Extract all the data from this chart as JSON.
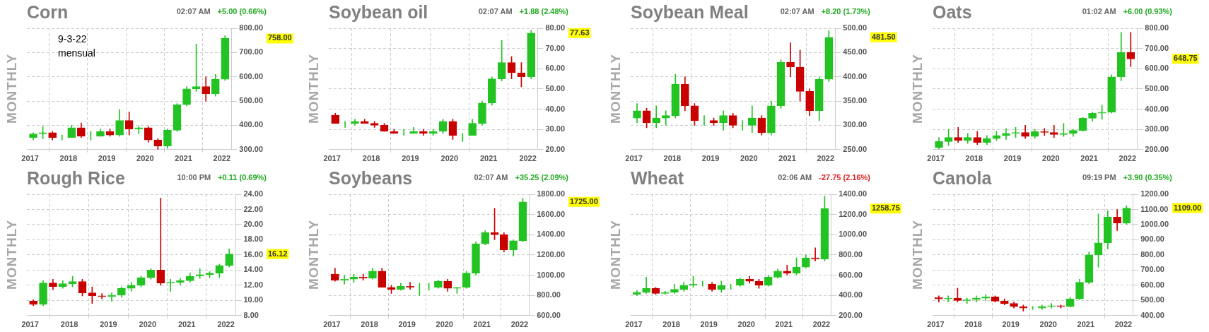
{
  "chart_data": [
    {
      "type": "candlestick",
      "title": "Corn",
      "subtitle": "02:07 AM",
      "ylabel": "MONTHLY",
      "annotations": [
        "+5.00 (0.66%)",
        "9-3-22 mensual",
        "758.00"
      ],
      "x": [
        "2017-02",
        "2017-05",
        "2017-08",
        "2017-11",
        "2018-02",
        "2018-05",
        "2018-08",
        "2018-11",
        "2019-02",
        "2019-05",
        "2019-08",
        "2019-11",
        "2020-02",
        "2020-05",
        "2020-08",
        "2020-11",
        "2021-02",
        "2021-05",
        "2021-08",
        "2021-11",
        "2022-02"
      ],
      "ohlc": [
        [
          350,
          370,
          340,
          365
        ],
        [
          365,
          395,
          345,
          370
        ],
        [
          370,
          375,
          340,
          350
        ],
        [
          350,
          360,
          340,
          350
        ],
        [
          350,
          400,
          350,
          390
        ],
        [
          390,
          410,
          350,
          355
        ],
        [
          355,
          375,
          340,
          355
        ],
        [
          355,
          385,
          355,
          375
        ],
        [
          375,
          385,
          355,
          360
        ],
        [
          360,
          465,
          355,
          420
        ],
        [
          420,
          455,
          360,
          385
        ],
        [
          385,
          395,
          365,
          390
        ],
        [
          390,
          395,
          330,
          340
        ],
        [
          340,
          345,
          300,
          315
        ],
        [
          315,
          385,
          305,
          380
        ],
        [
          380,
          490,
          375,
          485
        ],
        [
          485,
          560,
          480,
          550
        ],
        [
          550,
          735,
          540,
          560
        ],
        [
          560,
          600,
          500,
          530
        ],
        [
          530,
          610,
          520,
          590
        ],
        [
          590,
          770,
          585,
          758
        ]
      ],
      "xlim": [
        "2016-12",
        "2022-04"
      ],
      "xticks": [
        "2017",
        "2018",
        "2019",
        "2020",
        "2021",
        "2022"
      ],
      "ylim": [
        300,
        800
      ],
      "yticks": [
        {
          "value": 300,
          "label": "300.00"
        },
        {
          "value": 400,
          "label": "400.00"
        },
        {
          "value": 500,
          "label": "500.00"
        },
        {
          "value": 600,
          "label": "600.00"
        },
        {
          "value": 700,
          "label": "700.00"
        },
        {
          "value": 800,
          "label": "800.00"
        }
      ],
      "grid": true,
      "legend": false
    },
    {
      "type": "candlestick",
      "title": "Soybean oil",
      "subtitle": "02:07 AM",
      "ylabel": "MONTHLY",
      "annotations": [
        "+1.88 (2.48%)",
        "77.63"
      ],
      "x": [
        "2017-02",
        "2017-05",
        "2017-08",
        "2017-11",
        "2018-02",
        "2018-05",
        "2018-08",
        "2018-11",
        "2019-02",
        "2019-05",
        "2019-08",
        "2019-11",
        "2020-02",
        "2020-05",
        "2020-08",
        "2020-11",
        "2021-02",
        "2021-05",
        "2021-08",
        "2021-11",
        "2022-02"
      ],
      "ohlc": [
        [
          37,
          38,
          33,
          33
        ],
        [
          33,
          34,
          31,
          33
        ],
        [
          33,
          35,
          32,
          34
        ],
        [
          34,
          35,
          33,
          33
        ],
        [
          33,
          34,
          31,
          32
        ],
        [
          32,
          33,
          29,
          29
        ],
        [
          29,
          30,
          28,
          28
        ],
        [
          28,
          30,
          27,
          28
        ],
        [
          28,
          31,
          28,
          29
        ],
        [
          29,
          30,
          27,
          28
        ],
        [
          28,
          30,
          27,
          29
        ],
        [
          29,
          35,
          28,
          34
        ],
        [
          34,
          35,
          25,
          27
        ],
        [
          27,
          28,
          24,
          27
        ],
        [
          27,
          35,
          27,
          33
        ],
        [
          33,
          44,
          32,
          43
        ],
        [
          43,
          56,
          42,
          55
        ],
        [
          55,
          74,
          54,
          63
        ],
        [
          63,
          66,
          55,
          58
        ],
        [
          58,
          63,
          51,
          56
        ],
        [
          56,
          79,
          55,
          77.63
        ]
      ],
      "xlim": [
        "2016-12",
        "2022-04"
      ],
      "xticks": [
        "2017",
        "2018",
        "2019",
        "2020",
        "2021",
        "2022"
      ],
      "ylim": [
        20,
        80
      ],
      "yticks": [
        {
          "value": 20,
          "label": "20.00"
        },
        {
          "value": 30,
          "label": "30.00"
        },
        {
          "value": 40,
          "label": "40.00"
        },
        {
          "value": 50,
          "label": "50.00"
        },
        {
          "value": 60,
          "label": "60.00"
        },
        {
          "value": 70,
          "label": "70.00"
        },
        {
          "value": 80,
          "label": "80.00"
        }
      ],
      "grid": true,
      "legend": false
    },
    {
      "type": "candlestick",
      "title": "Soybean Meal",
      "subtitle": "02:07 AM",
      "ylabel": "MONTHLY",
      "annotations": [
        "+8.20 (1.73%)",
        "481.50"
      ],
      "x": [
        "2017-02",
        "2017-05",
        "2017-08",
        "2017-11",
        "2018-02",
        "2018-05",
        "2018-08",
        "2018-11",
        "2019-02",
        "2019-05",
        "2019-08",
        "2019-11",
        "2020-02",
        "2020-05",
        "2020-08",
        "2020-11",
        "2021-02",
        "2021-05",
        "2021-08",
        "2021-11",
        "2022-02"
      ],
      "ohlc": [
        [
          315,
          345,
          305,
          330
        ],
        [
          330,
          335,
          295,
          305
        ],
        [
          305,
          340,
          295,
          315
        ],
        [
          315,
          330,
          300,
          320
        ],
        [
          320,
          405,
          315,
          385
        ],
        [
          385,
          400,
          330,
          340
        ],
        [
          340,
          345,
          300,
          310
        ],
        [
          310,
          320,
          300,
          310
        ],
        [
          310,
          315,
          300,
          305
        ],
        [
          305,
          330,
          290,
          320
        ],
        [
          320,
          325,
          295,
          300
        ],
        [
          300,
          310,
          290,
          300
        ],
        [
          300,
          340,
          285,
          315
        ],
        [
          315,
          320,
          280,
          285
        ],
        [
          285,
          350,
          280,
          340
        ],
        [
          340,
          435,
          335,
          430
        ],
        [
          430,
          470,
          400,
          420
        ],
        [
          420,
          455,
          350,
          370
        ],
        [
          370,
          375,
          320,
          330
        ],
        [
          330,
          400,
          310,
          395
        ],
        [
          395,
          495,
          390,
          481.5
        ]
      ],
      "xlim": [
        "2016-12",
        "2022-04"
      ],
      "xticks": [
        "2017",
        "2018",
        "2019",
        "2020",
        "2021",
        "2022"
      ],
      "ylim": [
        250,
        500
      ],
      "yticks": [
        {
          "value": 250,
          "label": "250.00"
        },
        {
          "value": 300,
          "label": "300.00"
        },
        {
          "value": 350,
          "label": "350.00"
        },
        {
          "value": 400,
          "label": "400.00"
        },
        {
          "value": 450,
          "label": "450.00"
        },
        {
          "value": 500,
          "label": "500.00"
        }
      ],
      "grid": true,
      "legend": false
    },
    {
      "type": "candlestick",
      "title": "Oats",
      "subtitle": "01:02 AM",
      "ylabel": "MONTHLY",
      "annotations": [
        "+6.00 (0.93%)",
        "648.75"
      ],
      "x": [
        "2017-02",
        "2017-05",
        "2017-08",
        "2017-11",
        "2018-02",
        "2018-05",
        "2018-08",
        "2018-11",
        "2019-02",
        "2019-05",
        "2019-08",
        "2019-11",
        "2020-02",
        "2020-05",
        "2020-08",
        "2020-11",
        "2021-02",
        "2021-05",
        "2021-08",
        "2021-11",
        "2022-02"
      ],
      "ohlc": [
        [
          210,
          260,
          203,
          240
        ],
        [
          240,
          300,
          220,
          260
        ],
        [
          260,
          310,
          235,
          245
        ],
        [
          245,
          280,
          230,
          260
        ],
        [
          260,
          290,
          225,
          235
        ],
        [
          235,
          270,
          225,
          255
        ],
        [
          255,
          290,
          245,
          270
        ],
        [
          270,
          305,
          250,
          280
        ],
        [
          280,
          310,
          260,
          285
        ],
        [
          285,
          320,
          255,
          265
        ],
        [
          265,
          300,
          255,
          290
        ],
        [
          290,
          305,
          270,
          285
        ],
        [
          285,
          320,
          260,
          275
        ],
        [
          275,
          330,
          265,
          280
        ],
        [
          280,
          300,
          265,
          295
        ],
        [
          295,
          360,
          290,
          355
        ],
        [
          355,
          385,
          340,
          380
        ],
        [
          380,
          420,
          350,
          385
        ],
        [
          385,
          570,
          380,
          560
        ],
        [
          560,
          780,
          540,
          680
        ],
        [
          680,
          780,
          610,
          648.75
        ]
      ],
      "xlim": [
        "2016-12",
        "2022-04"
      ],
      "xticks": [
        "2017",
        "2018",
        "2019",
        "2020",
        "2021",
        "2022"
      ],
      "ylim": [
        200,
        800
      ],
      "yticks": [
        {
          "value": 200,
          "label": "200.00"
        },
        {
          "value": 300,
          "label": "300.00"
        },
        {
          "value": 400,
          "label": "400.00"
        },
        {
          "value": 500,
          "label": "500.00"
        },
        {
          "value": 600,
          "label": "600.00"
        },
        {
          "value": 700,
          "label": "700.00"
        },
        {
          "value": 800,
          "label": "800.00"
        }
      ],
      "grid": true,
      "legend": false
    },
    {
      "type": "candlestick",
      "title": "Rough Rice",
      "subtitle": "10:00 PM",
      "ylabel": "MONTHLY",
      "annotations": [
        "+0.11 (0.69%)",
        "16.12"
      ],
      "x": [
        "2017-02",
        "2017-05",
        "2017-08",
        "2017-11",
        "2018-02",
        "2018-05",
        "2018-08",
        "2018-11",
        "2019-02",
        "2019-05",
        "2019-08",
        "2019-11",
        "2020-02",
        "2020-05",
        "2020-08",
        "2020-11",
        "2021-02",
        "2021-05",
        "2021-08",
        "2021-11",
        "2022-02"
      ],
      "ohlc": [
        [
          9.9,
          10.1,
          9.3,
          9.5
        ],
        [
          9.5,
          12.6,
          9.3,
          12.3
        ],
        [
          12.3,
          12.8,
          11.4,
          11.8
        ],
        [
          11.8,
          12.6,
          11.6,
          12.2
        ],
        [
          12.2,
          13.2,
          11.8,
          12.5
        ],
        [
          12.5,
          12.8,
          10.6,
          11
        ],
        [
          11,
          11.8,
          9.6,
          10.6
        ],
        [
          10.6,
          10.9,
          10.2,
          10.5
        ],
        [
          10.5,
          11,
          9.9,
          10.7
        ],
        [
          10.7,
          11.8,
          10.4,
          11.6
        ],
        [
          11.6,
          12.4,
          11.2,
          12
        ],
        [
          12,
          13.2,
          11.8,
          13
        ],
        [
          13,
          14.2,
          12.8,
          14
        ],
        [
          14,
          23.5,
          12,
          12.3
        ],
        [
          12.3,
          12.8,
          11.2,
          12.4
        ],
        [
          12.4,
          12.9,
          12,
          12.6
        ],
        [
          12.6,
          13.6,
          12.4,
          13.2
        ],
        [
          13.2,
          14.2,
          12.9,
          13.4
        ],
        [
          13.4,
          13.8,
          13,
          13.6
        ],
        [
          13.6,
          14.8,
          13,
          14.6
        ],
        [
          14.6,
          16.8,
          14.4,
          16.12
        ]
      ],
      "xlim": [
        "2016-12",
        "2022-04"
      ],
      "xticks": [
        "2017",
        "2018",
        "2019",
        "2020",
        "2021",
        "2022"
      ],
      "ylim": [
        8,
        24
      ],
      "yticks": [
        {
          "value": 8,
          "label": "8.00"
        },
        {
          "value": 10,
          "label": "10.00"
        },
        {
          "value": 12,
          "label": "12.00"
        },
        {
          "value": 14,
          "label": "14.00"
        },
        {
          "value": 16,
          "label": "16.00"
        },
        {
          "value": 18,
          "label": "18.00"
        },
        {
          "value": 20,
          "label": "20.00"
        },
        {
          "value": 22,
          "label": "22.00"
        },
        {
          "value": 24,
          "label": "24.00"
        }
      ],
      "grid": true,
      "legend": false
    },
    {
      "type": "candlestick",
      "title": "Soybeans",
      "subtitle": "02:07 AM",
      "ylabel": "MONTHLY",
      "annotations": [
        "+35.25 (2.09%)",
        "1725.00"
      ],
      "x": [
        "2017-02",
        "2017-05",
        "2017-08",
        "2017-11",
        "2018-02",
        "2018-05",
        "2018-08",
        "2018-11",
        "2019-02",
        "2019-05",
        "2019-08",
        "2019-11",
        "2020-02",
        "2020-05",
        "2020-08",
        "2020-11",
        "2021-02",
        "2021-05",
        "2021-08",
        "2021-11",
        "2022-02"
      ],
      "ohlc": [
        [
          1010,
          1070,
          940,
          950
        ],
        [
          950,
          1000,
          910,
          960
        ],
        [
          960,
          1010,
          930,
          980
        ],
        [
          980,
          1010,
          950,
          970
        ],
        [
          970,
          1070,
          960,
          1040
        ],
        [
          1040,
          1070,
          880,
          880
        ],
        [
          880,
          900,
          820,
          860
        ],
        [
          860,
          920,
          850,
          890
        ],
        [
          890,
          930,
          860,
          880
        ],
        [
          880,
          920,
          800,
          880
        ],
        [
          880,
          920,
          850,
          880
        ],
        [
          880,
          950,
          870,
          940
        ],
        [
          940,
          960,
          840,
          870
        ],
        [
          870,
          880,
          820,
          880
        ],
        [
          880,
          1040,
          870,
          1020
        ],
        [
          1020,
          1330,
          1000,
          1310
        ],
        [
          1310,
          1440,
          1300,
          1420
        ],
        [
          1420,
          1660,
          1350,
          1400
        ],
        [
          1400,
          1420,
          1230,
          1250
        ],
        [
          1250,
          1350,
          1190,
          1340
        ],
        [
          1340,
          1760,
          1330,
          1725
        ]
      ],
      "xlim": [
        "2016-12",
        "2022-04"
      ],
      "xticks": [
        "2017",
        "2018",
        "2019",
        "2020",
        "2021",
        "2022"
      ],
      "ylim": [
        600,
        1800
      ],
      "yticks": [
        {
          "value": 600,
          "label": "600.00"
        },
        {
          "value": 800,
          "label": "800.00"
        },
        {
          "value": 1000,
          "label": "1000.00"
        },
        {
          "value": 1200,
          "label": "1200.00"
        },
        {
          "value": 1400,
          "label": "1400.00"
        },
        {
          "value": 1600,
          "label": "1600.00"
        },
        {
          "value": 1800,
          "label": "1800.00"
        }
      ],
      "grid": true,
      "legend": false
    },
    {
      "type": "candlestick",
      "title": "Wheat",
      "subtitle": "02:06 AM",
      "ylabel": "MONTHLY",
      "annotations": [
        "-27.75 (2.16%)",
        "1258.75"
      ],
      "x": [
        "2017-02",
        "2017-05",
        "2017-08",
        "2017-11",
        "2018-02",
        "2018-05",
        "2018-08",
        "2018-11",
        "2019-02",
        "2019-05",
        "2019-08",
        "2019-11",
        "2020-02",
        "2020-05",
        "2020-08",
        "2020-11",
        "2021-02",
        "2021-05",
        "2021-08",
        "2021-11",
        "2022-02"
      ],
      "ohlc": [
        [
          410,
          450,
          400,
          430
        ],
        [
          430,
          580,
          420,
          470
        ],
        [
          470,
          480,
          410,
          420
        ],
        [
          420,
          440,
          410,
          430
        ],
        [
          430,
          510,
          420,
          460
        ],
        [
          460,
          530,
          440,
          500
        ],
        [
          500,
          590,
          480,
          510
        ],
        [
          510,
          540,
          490,
          510
        ],
        [
          510,
          530,
          440,
          460
        ],
        [
          460,
          540,
          430,
          500
        ],
        [
          500,
          510,
          460,
          500
        ],
        [
          500,
          570,
          490,
          560
        ],
        [
          560,
          590,
          520,
          540
        ],
        [
          540,
          560,
          470,
          500
        ],
        [
          500,
          600,
          490,
          580
        ],
        [
          580,
          660,
          570,
          640
        ],
        [
          640,
          700,
          600,
          620
        ],
        [
          620,
          770,
          600,
          680
        ],
        [
          680,
          800,
          670,
          770
        ],
        [
          770,
          870,
          740,
          760
        ],
        [
          760,
          1380,
          740,
          1258.75
        ]
      ],
      "xlim": [
        "2016-12",
        "2022-04"
      ],
      "xticks": [
        "2017",
        "2018",
        "2019",
        "2020",
        "2021",
        "2022"
      ],
      "ylim": [
        200,
        1400
      ],
      "yticks": [
        {
          "value": 200,
          "label": "200.00"
        },
        {
          "value": 400,
          "label": "400.00"
        },
        {
          "value": 600,
          "label": "600.00"
        },
        {
          "value": 800,
          "label": "800.00"
        },
        {
          "value": 1000,
          "label": "1000.00"
        },
        {
          "value": 1200,
          "label": "1200.00"
        },
        {
          "value": 1400,
          "label": "1400.00"
        }
      ],
      "grid": true,
      "legend": false
    },
    {
      "type": "candlestick",
      "title": "Canola",
      "subtitle": "09:19 PM",
      "ylabel": "MONTHLY",
      "annotations": [
        "+3.90 (0.35%)",
        "1109.00"
      ],
      "x": [
        "2017-02",
        "2017-05",
        "2017-08",
        "2017-11",
        "2018-02",
        "2018-05",
        "2018-08",
        "2018-11",
        "2019-02",
        "2019-05",
        "2019-08",
        "2019-11",
        "2020-02",
        "2020-05",
        "2020-08",
        "2020-11",
        "2021-02",
        "2021-05",
        "2021-08",
        "2021-11",
        "2022-02"
      ],
      "ohlc": [
        [
          520,
          530,
          490,
          510
        ],
        [
          510,
          530,
          490,
          515
        ],
        [
          515,
          580,
          490,
          500
        ],
        [
          500,
          515,
          480,
          505
        ],
        [
          505,
          530,
          490,
          515
        ],
        [
          515,
          540,
          500,
          525
        ],
        [
          525,
          530,
          490,
          495
        ],
        [
          495,
          510,
          470,
          480
        ],
        [
          480,
          490,
          450,
          460
        ],
        [
          460,
          470,
          430,
          450
        ],
        [
          450,
          460,
          440,
          450
        ],
        [
          450,
          470,
          440,
          460
        ],
        [
          460,
          480,
          450,
          465
        ],
        [
          465,
          470,
          450,
          460
        ],
        [
          460,
          520,
          455,
          510
        ],
        [
          510,
          640,
          505,
          620
        ],
        [
          620,
          820,
          610,
          800
        ],
        [
          800,
          1070,
          720,
          880
        ],
        [
          880,
          1090,
          840,
          1050
        ],
        [
          1050,
          1100,
          960,
          1010
        ],
        [
          1010,
          1125,
          1000,
          1109
        ]
      ],
      "xlim": [
        "2016-12",
        "2022-04"
      ],
      "xticks": [
        "2017",
        "2018",
        "2019",
        "2020",
        "2021",
        "2022"
      ],
      "ylim": [
        400,
        1200
      ],
      "yticks": [
        {
          "value": 400,
          "label": "400.00"
        },
        {
          "value": 500,
          "label": "500.00"
        },
        {
          "value": 600,
          "label": "600.00"
        },
        {
          "value": 700,
          "label": "700.00"
        },
        {
          "value": 800,
          "label": "800.00"
        },
        {
          "value": 900,
          "label": "900.00"
        },
        {
          "value": 1000,
          "label": "1000.00"
        },
        {
          "value": 1100,
          "label": "1100.00"
        },
        {
          "value": 1200,
          "label": "1200.00"
        }
      ],
      "grid": true,
      "legend": false
    }
  ]
}
